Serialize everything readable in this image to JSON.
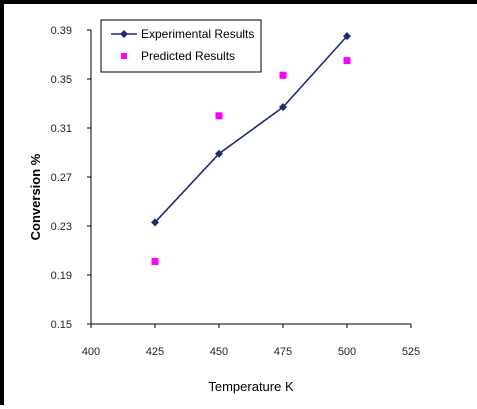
{
  "chart_data": {
    "type": "scatter",
    "title": "",
    "xlabel": "Temperature K",
    "ylabel": "Conversion %",
    "xlim": [
      400,
      525
    ],
    "ylim": [
      0.15,
      0.39
    ],
    "x_ticks": [
      "400",
      "425",
      "450",
      "475",
      "500",
      "525"
    ],
    "y_ticks": [
      "0.15",
      "0.19",
      "0.23",
      "0.27",
      "0.31",
      "0.35",
      "0.39"
    ],
    "x_tick_values": [
      400,
      425,
      450,
      475,
      500,
      525
    ],
    "y_tick_values": [
      0.15,
      0.19,
      0.23,
      0.27,
      0.31,
      0.35,
      0.39
    ],
    "grid": false,
    "legend_position": "top-left",
    "series": [
      {
        "name": "Experimental Results",
        "style": "line-with-diamond-markers",
        "color": "#1f2a78",
        "x": [
          425,
          450,
          475,
          500
        ],
        "y": [
          0.233,
          0.289,
          0.327,
          0.385
        ]
      },
      {
        "name": "Predicted Results",
        "style": "square-markers",
        "color": "#ff00ff",
        "x": [
          425,
          450,
          475,
          500
        ],
        "y": [
          0.201,
          0.32,
          0.353,
          0.365
        ]
      }
    ]
  }
}
